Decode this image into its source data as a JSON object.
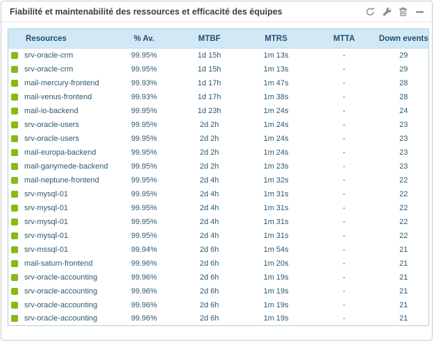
{
  "widget": {
    "title": "Fiabilité et maintenabilité des ressources et efficacité des équipes",
    "toolbar": {
      "refresh_tooltip": "Refresh",
      "settings_tooltip": "Settings",
      "delete_tooltip": "Delete",
      "collapse_tooltip": "Collapse"
    }
  },
  "colors": {
    "status_ok": "#88b917",
    "header_bg": "#d2e9f5",
    "table_border": "#abd0e1",
    "header_text": "#1f4e74",
    "cell_text": "#2b5872",
    "icon_gray": "#8f8f8f"
  },
  "table": {
    "columns": [
      "Resources",
      "% Av.",
      "MTBF",
      "MTRS",
      "MTTA",
      "Down events"
    ],
    "rows": [
      {
        "resource": "srv-oracle-crm",
        "availability": "99.95%",
        "mtbf": "1d 15h",
        "mtrs": "1m 13s",
        "mtta": "-",
        "down_events": "29"
      },
      {
        "resource": "srv-oracle-crm",
        "availability": "99.95%",
        "mtbf": "1d 15h",
        "mtrs": "1m 13s",
        "mtta": "-",
        "down_events": "29"
      },
      {
        "resource": "mail-mercury-frontend",
        "availability": "99.93%",
        "mtbf": "1d 17h",
        "mtrs": "1m 47s",
        "mtta": "-",
        "down_events": "28"
      },
      {
        "resource": "mail-venus-frontend",
        "availability": "99.93%",
        "mtbf": "1d 17h",
        "mtrs": "1m 38s",
        "mtta": "-",
        "down_events": "28"
      },
      {
        "resource": "mail-io-backend",
        "availability": "99.95%",
        "mtbf": "1d 23h",
        "mtrs": "1m 24s",
        "mtta": "-",
        "down_events": "24"
      },
      {
        "resource": "srv-oracle-users",
        "availability": "99.95%",
        "mtbf": "2d 2h",
        "mtrs": "1m 24s",
        "mtta": "-",
        "down_events": "23"
      },
      {
        "resource": "srv-oracle-users",
        "availability": "99.95%",
        "mtbf": "2d 2h",
        "mtrs": "1m 24s",
        "mtta": "-",
        "down_events": "23"
      },
      {
        "resource": "mail-europa-backend",
        "availability": "99.95%",
        "mtbf": "2d 2h",
        "mtrs": "1m 24s",
        "mtta": "-",
        "down_events": "23"
      },
      {
        "resource": "mail-ganymede-backend",
        "availability": "99.95%",
        "mtbf": "2d 2h",
        "mtrs": "1m 23s",
        "mtta": "-",
        "down_events": "23"
      },
      {
        "resource": "mail-neptune-frontend",
        "availability": "99.95%",
        "mtbf": "2d 4h",
        "mtrs": "1m 32s",
        "mtta": "-",
        "down_events": "22"
      },
      {
        "resource": "srv-mysql-01",
        "availability": "99.95%",
        "mtbf": "2d 4h",
        "mtrs": "1m 31s",
        "mtta": "-",
        "down_events": "22"
      },
      {
        "resource": "srv-mysql-01",
        "availability": "99.95%",
        "mtbf": "2d 4h",
        "mtrs": "1m 31s",
        "mtta": "-",
        "down_events": "22"
      },
      {
        "resource": "srv-mysql-01",
        "availability": "99.95%",
        "mtbf": "2d 4h",
        "mtrs": "1m 31s",
        "mtta": "-",
        "down_events": "22"
      },
      {
        "resource": "srv-mysql-01",
        "availability": "99.95%",
        "mtbf": "2d 4h",
        "mtrs": "1m 31s",
        "mtta": "-",
        "down_events": "22"
      },
      {
        "resource": "srv-mssql-01",
        "availability": "99.94%",
        "mtbf": "2d 6h",
        "mtrs": "1m 54s",
        "mtta": "-",
        "down_events": "21"
      },
      {
        "resource": "mail-saturn-frontend",
        "availability": "99.96%",
        "mtbf": "2d 6h",
        "mtrs": "1m 20s",
        "mtta": "-",
        "down_events": "21"
      },
      {
        "resource": "srv-oracle-accounting",
        "availability": "99.96%",
        "mtbf": "2d 6h",
        "mtrs": "1m 19s",
        "mtta": "-",
        "down_events": "21"
      },
      {
        "resource": "srv-oracle-accounting",
        "availability": "99.96%",
        "mtbf": "2d 6h",
        "mtrs": "1m 19s",
        "mtta": "-",
        "down_events": "21"
      },
      {
        "resource": "srv-oracle-accounting",
        "availability": "99.96%",
        "mtbf": "2d 6h",
        "mtrs": "1m 19s",
        "mtta": "-",
        "down_events": "21"
      },
      {
        "resource": "srv-oracle-accounting",
        "availability": "99.96%",
        "mtbf": "2d 6h",
        "mtrs": "1m 19s",
        "mtta": "-",
        "down_events": "21"
      }
    ]
  }
}
